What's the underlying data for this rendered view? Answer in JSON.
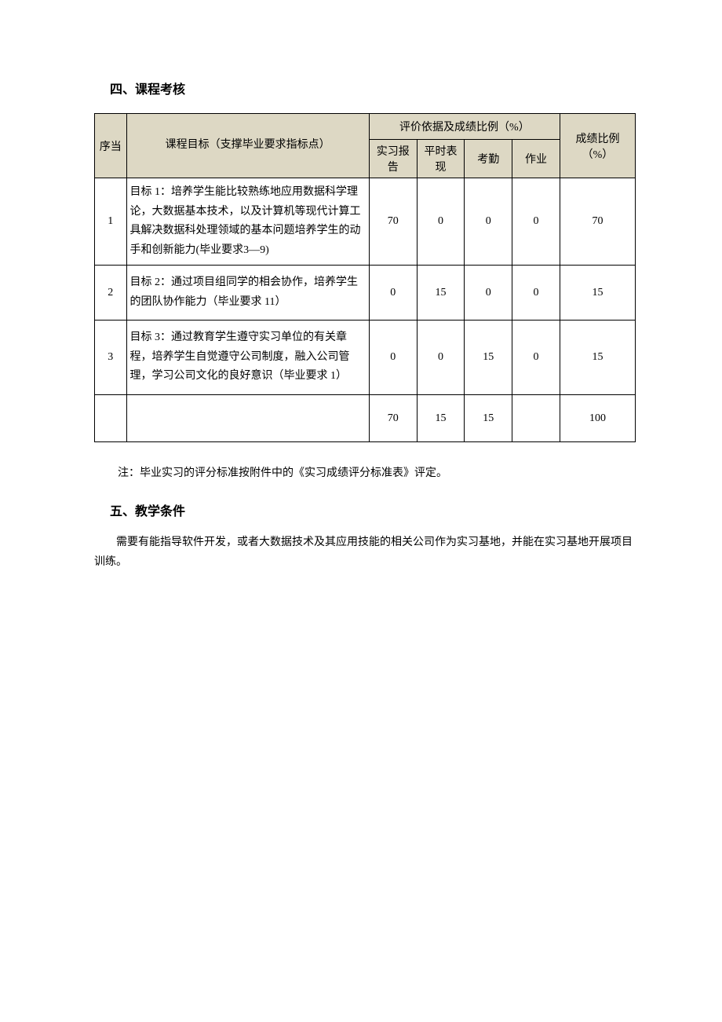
{
  "section4": {
    "title": "四、课程考核",
    "table": {
      "header": {
        "seq": "序当",
        "goal": "课程目标（支撑毕业要求指标点）",
        "eval_group": "评价依据及成绩比例（%）",
        "sub_headers": [
          "实习报告",
          "平时表现",
          "考勤",
          "作业"
        ],
        "ratio": "成绩比例（%）"
      },
      "rows": [
        {
          "seq": "1",
          "goal": "目标 1：培养学生能比较熟练地应用数据科学理论，大数据基本技术，以及计算机等现代计算工具解决数据科处理领域的基本问题培养学生的动手和创新能力(毕业要求3—9)",
          "v1": "70",
          "v2": "0",
          "v3": "0",
          "v4": "0",
          "ratio": "70"
        },
        {
          "seq": "2",
          "goal": "目标 2：通过项目组同学的相会协作，培养学生的团队协作能力（毕业要求 11）",
          "v1": "0",
          "v2": "15",
          "v3": "0",
          "v4": "0",
          "ratio": "15"
        },
        {
          "seq": "3",
          "goal": "目标 3：通过教育学生遵守实习单位的有关章程，培养学生自觉遵守公司制度，融入公司管理，学习公司文化的良好意识（毕业要求 1）",
          "v1": "0",
          "v2": "0",
          "v3": "15",
          "v4": "0",
          "ratio": "15"
        }
      ],
      "totals": {
        "v1": "70",
        "v2": "15",
        "v3": "15",
        "v4": "",
        "ratio": "100"
      }
    },
    "note": "注：毕业实习的评分标准按附件中的《实习成绩评分标准表》评定。"
  },
  "section5": {
    "title": "五、教学条件",
    "para": "需要有能指导软件开发，或者大数据技术及其应用技能的相关公司作为实习基地，并能在实习基地开展项目训练。"
  },
  "styling": {
    "header_bg": "#ddd8c4",
    "border_color": "#000000",
    "font_family": "SimSun",
    "body_font_size": 14,
    "title_font_size": 16
  }
}
